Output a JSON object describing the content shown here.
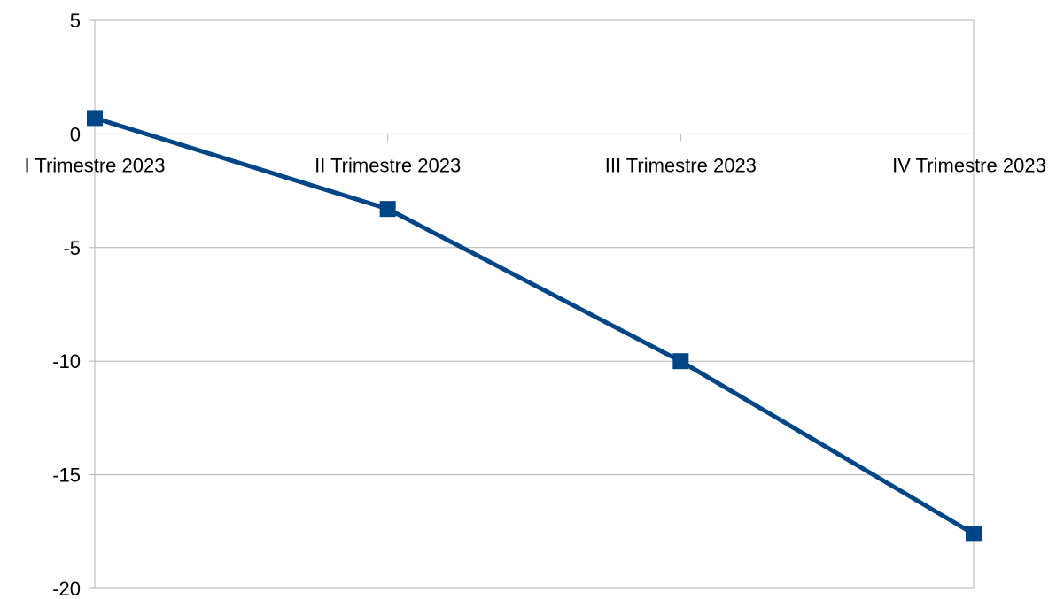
{
  "chart_data": {
    "type": "line",
    "title": "",
    "xlabel": "",
    "ylabel": "",
    "categories": [
      "I Trimestre 2023",
      "II Trimestre 2023",
      "III Trimestre 2023",
      "IV Trimestre 2023"
    ],
    "series": [
      {
        "values": [
          0.7,
          -3.3,
          -10.0,
          -17.6
        ],
        "color": "#004586",
        "marker": "square"
      }
    ],
    "ylim": [
      -20,
      5
    ],
    "yticks": [
      5,
      0,
      -5,
      -10,
      -15,
      -20
    ],
    "ytick_labels": [
      "5",
      "0",
      "-5",
      "-10",
      "-15",
      "-20"
    ],
    "grid": true,
    "grid_color": "#b3b3b3",
    "legend": "none"
  }
}
